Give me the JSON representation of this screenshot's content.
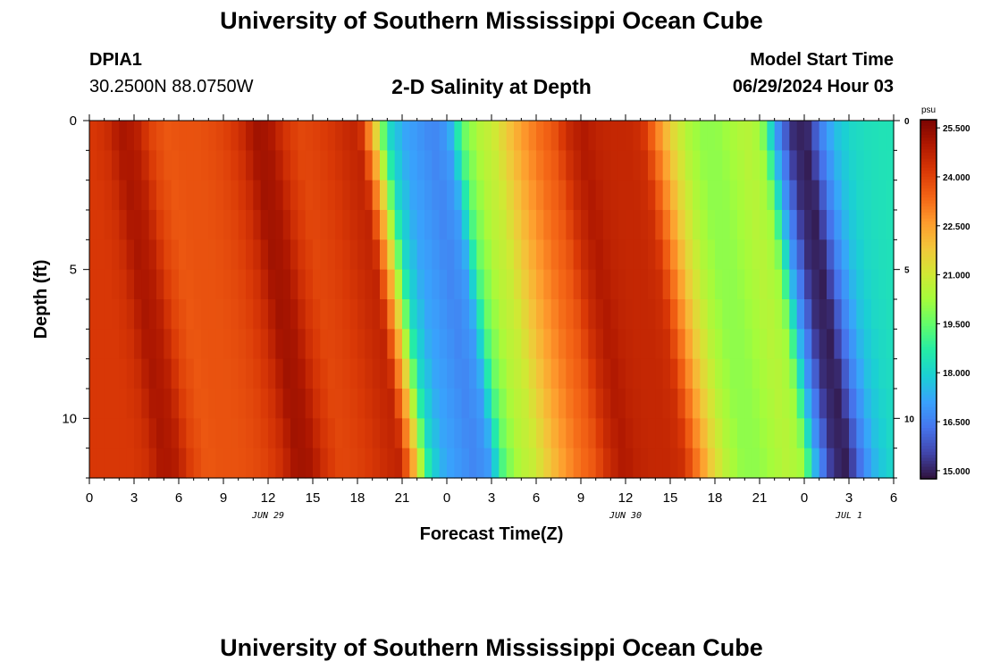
{
  "header": {
    "title": "University of Southern Mississippi Ocean Cube",
    "station": "DPIA1",
    "coords": "30.2500N  88.0750W",
    "subtitle": "2-D Salinity at Depth",
    "model_start_label": "Model Start Time",
    "model_start_value": "06/29/2024 Hour 03"
  },
  "footer": {
    "title": "University of Southern Mississippi Ocean Cube"
  },
  "chart_data": {
    "type": "heatmap",
    "title": "2-D Salinity at Depth",
    "xlabel": "Forecast Time(Z)",
    "ylabel": "Depth (ft)",
    "x_hours": [
      0,
      54
    ],
    "y_range": [
      0,
      12
    ],
    "x_tick_labels": [
      "0",
      "3",
      "6",
      "9",
      "12",
      "15",
      "18",
      "21",
      "0",
      "3",
      "6",
      "9",
      "12",
      "15",
      "18",
      "21",
      "0",
      "3",
      "6"
    ],
    "y_tick_labels": [
      "0",
      "5",
      "10"
    ],
    "day_labels": [
      {
        "label": "JUN 29",
        "hour": 12
      },
      {
        "label": "JUN 30",
        "hour": 36
      },
      {
        "label": "JUL 1",
        "hour": 51
      }
    ],
    "colorbar": {
      "unit": "psu",
      "range": [
        14.75,
        25.75
      ],
      "ticks": [
        "25.500",
        "24.000",
        "22.500",
        "21.000",
        "19.500",
        "18.000",
        "16.500",
        "15.000"
      ],
      "colors": [
        "#30123b",
        "#4145ab",
        "#4675ed",
        "#39a2fc",
        "#1bcfd4",
        "#24eca6",
        "#61fc6c",
        "#a4fc3b",
        "#d1e834",
        "#f3c63a",
        "#fe9b2d",
        "#f36315",
        "#d93806",
        "#b11901",
        "#7a0402"
      ]
    },
    "salinity_profile": [
      [
        0,
        24.2
      ],
      [
        1,
        24.4
      ],
      [
        2,
        25.1
      ],
      [
        3,
        24.9
      ],
      [
        4,
        24.0
      ],
      [
        5,
        23.6
      ],
      [
        6,
        23.7
      ],
      [
        7,
        23.7
      ],
      [
        8,
        23.8
      ],
      [
        9,
        24.0
      ],
      [
        10,
        24.4
      ],
      [
        11,
        25.2
      ],
      [
        12,
        25.1
      ],
      [
        13,
        24.3
      ],
      [
        14,
        23.9
      ],
      [
        15,
        24.0
      ],
      [
        16,
        24.2
      ],
      [
        17,
        24.5
      ],
      [
        18,
        24.7
      ],
      [
        19,
        22.0
      ],
      [
        19.5,
        20.0
      ],
      [
        20,
        18.2
      ],
      [
        21,
        17.2
      ],
      [
        22,
        16.9
      ],
      [
        23,
        16.6
      ],
      [
        24,
        17.0
      ],
      [
        25,
        19.5
      ],
      [
        26,
        20.5
      ],
      [
        27,
        20.9
      ],
      [
        28,
        21.8
      ],
      [
        29,
        22.6
      ],
      [
        30,
        23.2
      ],
      [
        31,
        23.6
      ],
      [
        32,
        24.5
      ],
      [
        33,
        25.0
      ],
      [
        34,
        24.7
      ],
      [
        35,
        24.6
      ],
      [
        36,
        24.6
      ],
      [
        37,
        24.4
      ],
      [
        38,
        23.0
      ],
      [
        39,
        21.5
      ],
      [
        40,
        20.5
      ],
      [
        41,
        20.0
      ],
      [
        42,
        20.0
      ],
      [
        43,
        20.3
      ],
      [
        44,
        20.6
      ],
      [
        45,
        20.2
      ],
      [
        46,
        17.0
      ],
      [
        46.5,
        16.2
      ],
      [
        47,
        15.2
      ],
      [
        48,
        14.9
      ],
      [
        49,
        16.5
      ],
      [
        50,
        17.6
      ],
      [
        51,
        18.1
      ],
      [
        52,
        18.3
      ],
      [
        53,
        18.4
      ],
      [
        54,
        18.4
      ]
    ]
  }
}
